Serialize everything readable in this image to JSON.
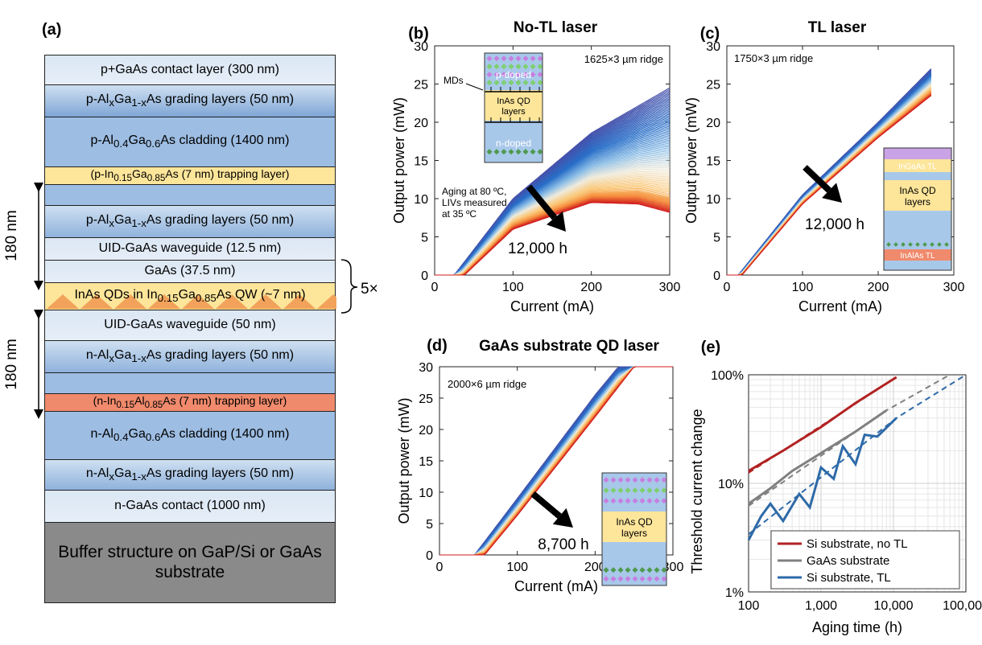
{
  "panel_a": {
    "label": "(a)",
    "layers": [
      {
        "text": "p+GaAs contact layer (300 nm)",
        "cls": "c-light",
        "h": 38
      },
      {
        "text": "p-AlxGa1-xAs grading layers (50 nm)",
        "cls": "c-grad",
        "h": 40
      },
      {
        "text": "p-Al0.4Ga0.6As cladding (1400 nm)",
        "cls": "c-clad",
        "h": 62
      },
      {
        "text": "(p-In0.15Ga0.85As (7 nm) trapping layer)",
        "cls": "c-yellow",
        "h": 22
      },
      {
        "text": "",
        "cls": "c-clad",
        "h": 26
      },
      {
        "text": "p-AlxGa1-xAs grading layers (50 nm)",
        "cls": "c-gradn",
        "h": 40
      },
      {
        "text": "UID-GaAs waveguide (12.5 nm)",
        "cls": "c-light",
        "h": 28
      },
      {
        "text": "GaAs (37.5 nm)",
        "cls": "c-light",
        "h": 28
      },
      {
        "text": "InAs QDs in In0.15Ga0.85As QW (~7 nm)",
        "cls": "c-qd",
        "h": 34
      },
      {
        "text": "UID-GaAs waveguide (50 nm)",
        "cls": "c-light",
        "h": 38
      },
      {
        "text": "n-AlxGa1-xAs grading layers (50 nm)",
        "cls": "c-gradn",
        "h": 40
      },
      {
        "text": "",
        "cls": "c-clad",
        "h": 26
      },
      {
        "text": "(n-In0.15Al0.85As (7 nm) trapping layer)",
        "cls": "c-red",
        "h": 22
      },
      {
        "text": "n-Al0.4Ga0.6As cladding (1400 nm)",
        "cls": "c-clad",
        "h": 60
      },
      {
        "text": "n-AlxGa1-xAs grading layers (50 nm)",
        "cls": "c-gradn",
        "h": 38
      },
      {
        "text": "n-GaAs contact (1000 nm)",
        "cls": "c-light",
        "h": 40
      },
      {
        "text": "Buffer structure on GaP/Si or GaAs substrate",
        "cls": "c-buffer",
        "h": 100
      }
    ],
    "dim_top": "180 nm",
    "dim_bottom": "180 nm",
    "repeat": "5×"
  },
  "chart_data": [
    {
      "panel": "(b)",
      "type": "line",
      "title": "No-TL laser",
      "xlabel": "Current (mA)",
      "ylabel": "Output power (mW)",
      "xlim": [
        0,
        300
      ],
      "ylim": [
        0,
        30
      ],
      "xticks": [
        0,
        100,
        200,
        300
      ],
      "yticks": [
        0,
        5,
        10,
        15,
        20,
        25,
        30
      ],
      "annotation_ridge": "1625×3 µm ridge",
      "annotation_aging": [
        "Aging at 80 ºC,",
        "LIVs measured",
        "at 35 ºC"
      ],
      "arrow_label": "12,000 h",
      "inset_labels": [
        "p-doped",
        "MDs",
        "InAs QD",
        "layers",
        "n-doped"
      ],
      "series": [
        {
          "values": [
            [
              0,
              0
            ],
            [
              25,
              0
            ],
            [
              100,
              10.0
            ],
            [
              200,
              18.6
            ],
            [
              300,
              24.5
            ]
          ]
        },
        {
          "values": [
            [
              0,
              0
            ],
            [
              35,
              0
            ],
            [
              100,
              6.8
            ],
            [
              200,
              10.8
            ],
            [
              260,
              11.0
            ],
            [
              300,
              10.2
            ]
          ]
        },
        {
          "values": [
            [
              0,
              0
            ],
            [
              38,
              0
            ],
            [
              100,
              6.0
            ],
            [
              200,
              9.5
            ],
            [
              260,
              9.3
            ],
            [
              300,
              8.2
            ]
          ]
        }
      ]
    },
    {
      "panel": "(c)",
      "type": "line",
      "title": "TL laser",
      "xlabel": "Current (mA)",
      "ylabel": "Output power (mW)",
      "xlim": [
        0,
        300
      ],
      "ylim": [
        0,
        30
      ],
      "xticks": [
        0,
        100,
        200,
        300
      ],
      "yticks": [
        0,
        5,
        10,
        15,
        20,
        25,
        30
      ],
      "annotation_ridge": "1750×3 µm ridge",
      "arrow_label": "12,000 h",
      "inset_labels": [
        "InGaAs TL",
        "InAs QD",
        "layers",
        "InAlAs TL"
      ],
      "series": [
        {
          "values": [
            [
              0,
              0
            ],
            [
              15,
              0
            ],
            [
              100,
              10.5
            ],
            [
              200,
              20.0
            ],
            [
              270,
              27.0
            ]
          ]
        },
        {
          "values": [
            [
              0,
              0
            ],
            [
              20,
              0
            ],
            [
              100,
              9.3
            ],
            [
              200,
              18.0
            ],
            [
              270,
              23.5
            ]
          ]
        }
      ]
    },
    {
      "panel": "(d)",
      "type": "line",
      "title": "GaAs substrate QD laser",
      "xlabel": "Current (mA)",
      "ylabel": "Output power (mW)",
      "xlim": [
        0,
        300
      ],
      "ylim": [
        0,
        30
      ],
      "xticks": [
        0,
        100,
        200,
        300
      ],
      "yticks": [
        0,
        5,
        10,
        15,
        20,
        25,
        30
      ],
      "annotation_ridge": "2000×6 µm ridge",
      "arrow_label": "8,700 h",
      "inset_labels": [
        "InAs QD",
        "layers"
      ],
      "series": [
        {
          "values": [
            [
              0,
              0
            ],
            [
              45,
              0
            ],
            [
              100,
              9.0
            ],
            [
              200,
              25.5
            ],
            [
              230,
              30.0
            ]
          ]
        },
        {
          "values": [
            [
              0,
              0
            ],
            [
              58,
              0
            ],
            [
              100,
              6.3
            ],
            [
              200,
              22.0
            ],
            [
              250,
              30.0
            ]
          ]
        }
      ]
    },
    {
      "panel": "(e)",
      "type": "line",
      "xlabel": "Aging time (h)",
      "ylabel": "Threshold current change",
      "xscale": "log",
      "yscale": "log",
      "xlim": [
        100,
        100000
      ],
      "ylim": [
        1,
        100
      ],
      "xticks": [
        100,
        1000,
        10000,
        100000
      ],
      "xtick_labels": [
        "100",
        "1,000",
        "10,000",
        "100,000"
      ],
      "yticks": [
        1,
        10,
        100
      ],
      "ytick_labels": [
        "1%",
        "10%",
        "100%"
      ],
      "grid": true,
      "legend": "bottom-right",
      "series": [
        {
          "name": "Si substrate, no TL",
          "color": "#b22222",
          "values": [
            [
              100,
              13
            ],
            [
              300,
              20
            ],
            [
              1000,
              33
            ],
            [
              3000,
              55
            ],
            [
              11000,
              95
            ]
          ],
          "fit": [
            [
              100,
              12.5
            ],
            [
              11000,
              95
            ]
          ]
        },
        {
          "name": "GaAs substrate",
          "color": "#808080",
          "values": [
            [
              100,
              6.5
            ],
            [
              200,
              9
            ],
            [
              400,
              13
            ],
            [
              1000,
              19
            ],
            [
              3000,
              30
            ],
            [
              8000,
              47
            ]
          ],
          "fit": [
            [
              100,
              6.2
            ],
            [
              8000,
              47
            ],
            [
              60000,
              100
            ]
          ]
        },
        {
          "name": "Si substrate, TL",
          "color": "#2e6aa8",
          "values": [
            [
              100,
              3
            ],
            [
              150,
              5
            ],
            [
              200,
              6.5
            ],
            [
              300,
              4.5
            ],
            [
              500,
              8
            ],
            [
              700,
              6
            ],
            [
              1000,
              14
            ],
            [
              1500,
              11
            ],
            [
              2000,
              22
            ],
            [
              3000,
              15
            ],
            [
              4000,
              28
            ],
            [
              6000,
              27
            ],
            [
              11000,
              40
            ]
          ],
          "fit": [
            [
              100,
              3.4
            ],
            [
              11000,
              40
            ],
            [
              100000,
              100
            ]
          ]
        }
      ]
    }
  ]
}
